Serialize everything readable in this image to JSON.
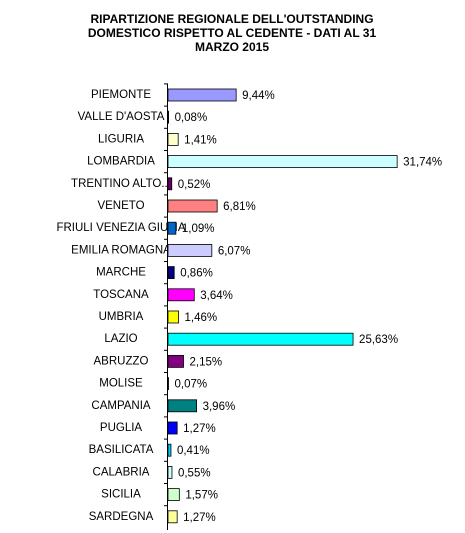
{
  "chart_data": {
    "type": "bar",
    "orientation": "horizontal",
    "title": [
      "RIPARTIZIONE REGIONALE DELL'OUTSTANDING",
      "DOMESTICO RISPETTO AL CEDENTE - DATI AL 31",
      "MARZO 2015"
    ],
    "categories": [
      "PIEMONTE",
      "VALLE D'AOSTA",
      "LIGURIA",
      "LOMBARDIA",
      "TRENTINO ALTO...",
      "VENETO",
      "FRIULI VENEZIA GIULIA",
      "EMILIA ROMAGNA",
      "MARCHE",
      "TOSCANA",
      "UMBRIA",
      "LAZIO",
      "ABRUZZO",
      "MOLISE",
      "CAMPANIA",
      "PUGLIA",
      "BASILICATA",
      "CALABRIA",
      "SICILIA",
      "SARDEGNA"
    ],
    "values": [
      9.44,
      0.08,
      1.41,
      31.74,
      0.52,
      6.81,
      1.09,
      6.07,
      0.86,
      3.64,
      1.46,
      25.63,
      2.15,
      0.07,
      3.96,
      1.27,
      0.41,
      0.55,
      1.57,
      1.27
    ],
    "value_labels": [
      "9,44%",
      "0,08%",
      "1,41%",
      "31,74%",
      "0,52%",
      "6,81%",
      "1,09%",
      "6,07%",
      "0,86%",
      "3,64%",
      "1,46%",
      "25,63%",
      "2,15%",
      "0,07%",
      "3,96%",
      "1,27%",
      "0,41%",
      "0,55%",
      "1,57%",
      "1,27%"
    ],
    "colors": [
      "#9999ff",
      "#ffffcc",
      "#ffffcc",
      "#ccffff",
      "#660066",
      "#ff8080",
      "#0066cc",
      "#ccccff",
      "#000080",
      "#ff00ff",
      "#ffff00",
      "#00ffff",
      "#800080",
      "#008080",
      "#008080",
      "#0000ff",
      "#00ccff",
      "#ccffff",
      "#ccffcc",
      "#ffff99"
    ]
  }
}
